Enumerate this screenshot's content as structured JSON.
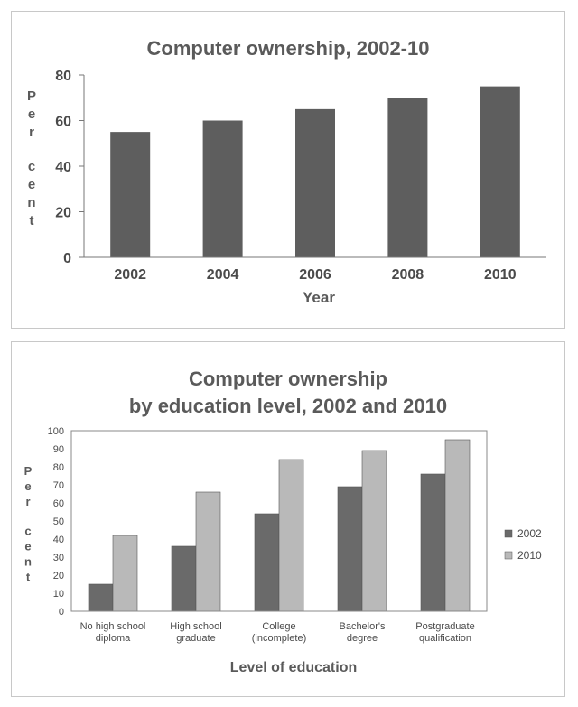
{
  "chart_data": [
    {
      "type": "bar",
      "title": "Computer ownership, 2002-10",
      "xlabel": "Year",
      "ylabel": "Per cent",
      "ylim": [
        0,
        80
      ],
      "yticks": [
        0,
        20,
        40,
        60,
        80
      ],
      "categories": [
        "2002",
        "2004",
        "2006",
        "2008",
        "2010"
      ],
      "values": [
        55,
        60,
        65,
        70,
        75
      ],
      "grid": false,
      "colors": {
        "bar": "#5e5e5e"
      }
    },
    {
      "type": "bar",
      "title_lines": [
        "Computer ownership",
        "by education level, 2002 and 2010"
      ],
      "xlabel": "Level of education",
      "ylabel": "Per cent",
      "ylim": [
        0,
        100
      ],
      "yticks": [
        0,
        10,
        20,
        30,
        40,
        50,
        60,
        70,
        80,
        90,
        100
      ],
      "categories": [
        [
          "No high school",
          "diploma"
        ],
        [
          "High school",
          "graduate"
        ],
        [
          "College",
          "(incomplete)"
        ],
        [
          "Bachelor's",
          "degree"
        ],
        [
          "Postgraduate",
          "qualification"
        ]
      ],
      "series": [
        {
          "name": "2002",
          "values": [
            15,
            36,
            54,
            69,
            76
          ],
          "color": "#6a6a6a"
        },
        {
          "name": "2010",
          "values": [
            42,
            66,
            84,
            89,
            95
          ],
          "color": "#b9b9b9"
        }
      ],
      "legend_position": "right",
      "grid": false
    }
  ]
}
